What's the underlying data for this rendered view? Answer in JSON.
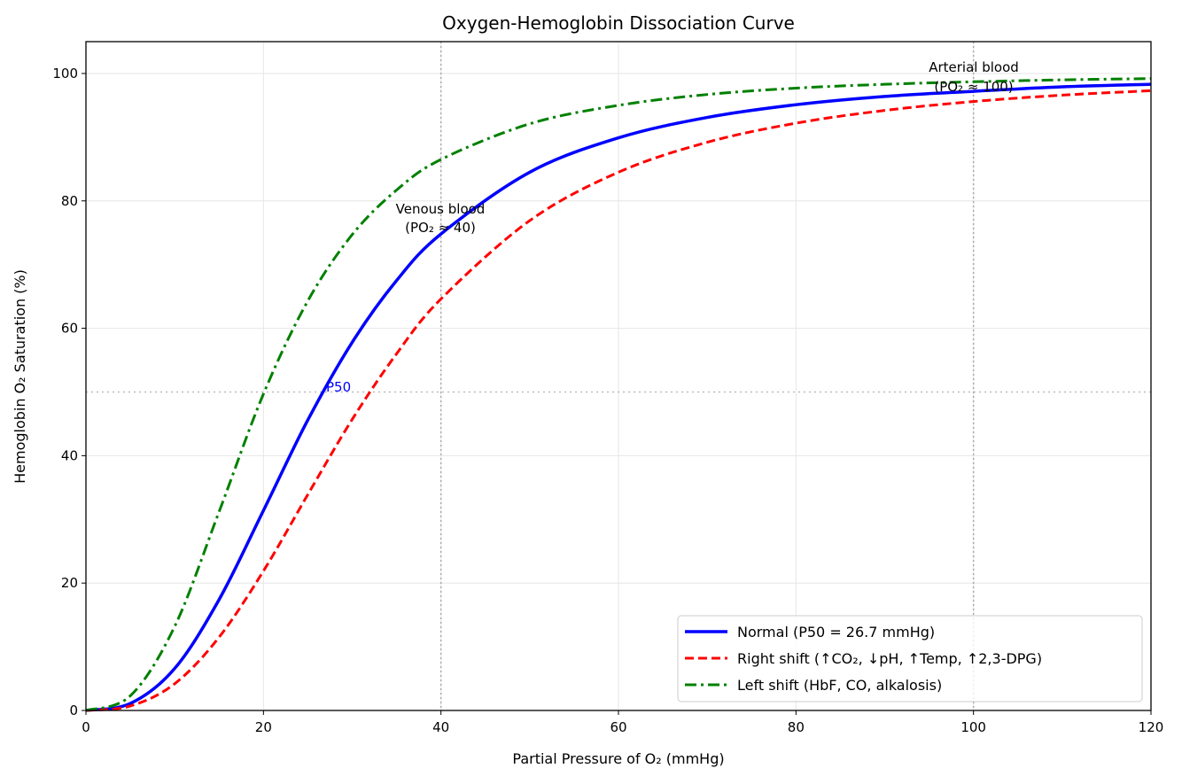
{
  "chart_data": {
    "type": "line",
    "title": "Oxygen-Hemoglobin Dissociation Curve",
    "xlabel": "Partial Pressure of O₂ (mmHg)",
    "ylabel": "Hemoglobin O₂ Saturation (%)",
    "xlim": [
      0,
      120
    ],
    "ylim": [
      0,
      105
    ],
    "xticks": [
      0,
      20,
      40,
      60,
      80,
      100,
      120
    ],
    "yticks": [
      0,
      20,
      40,
      60,
      80,
      100
    ],
    "grid": true,
    "legend_position": "lower-right",
    "x": [
      0,
      5,
      10,
      15,
      20,
      25,
      30,
      35,
      40,
      50,
      60,
      70,
      80,
      90,
      100,
      110,
      120
    ],
    "series": [
      {
        "name": "Normal (P50 = 26.7 mmHg)",
        "color": "#0000ff",
        "style": "solid",
        "values": [
          0,
          1.1,
          6.6,
          17.4,
          31.4,
          45.6,
          57.8,
          67.5,
          74.8,
          84.5,
          89.9,
          93.1,
          95.1,
          96.4,
          97.2,
          97.9,
          98.3
        ]
      },
      {
        "name": "Right shift (↑CO₂, ↓pH, ↑Temp, ↑2,3-DPG)",
        "color": "#ff0000",
        "style": "dashed",
        "values": [
          0,
          0.7,
          4.2,
          11.5,
          21.9,
          33.9,
          45.7,
          56.0,
          64.6,
          76.9,
          84.5,
          89.2,
          92.2,
          94.2,
          95.6,
          96.6,
          97.3
        ]
      },
      {
        "name": "Left shift (HbF, CO, alkalosis)",
        "color": "#008000",
        "style": "dashdot",
        "values": [
          0,
          2.3,
          13.2,
          31.2,
          49.7,
          64.3,
          74.7,
          81.7,
          86.5,
          92.1,
          95.0,
          96.7,
          97.7,
          98.3,
          98.7,
          99.0,
          99.2
        ]
      }
    ],
    "reference_lines": {
      "vertical_x": [
        40,
        100
      ],
      "horizontal_y": 50
    },
    "annotations": [
      {
        "text": "P50",
        "x": 26.7,
        "y": 50,
        "color": "#0000ff"
      },
      {
        "line1": "Venous blood",
        "line2": "(PO₂ ≈ 40)",
        "x": 40,
        "y": 78
      },
      {
        "line1": "Arterial blood",
        "line2": "(PO₂ ≈ 100)",
        "x": 100,
        "y": 99
      }
    ]
  }
}
